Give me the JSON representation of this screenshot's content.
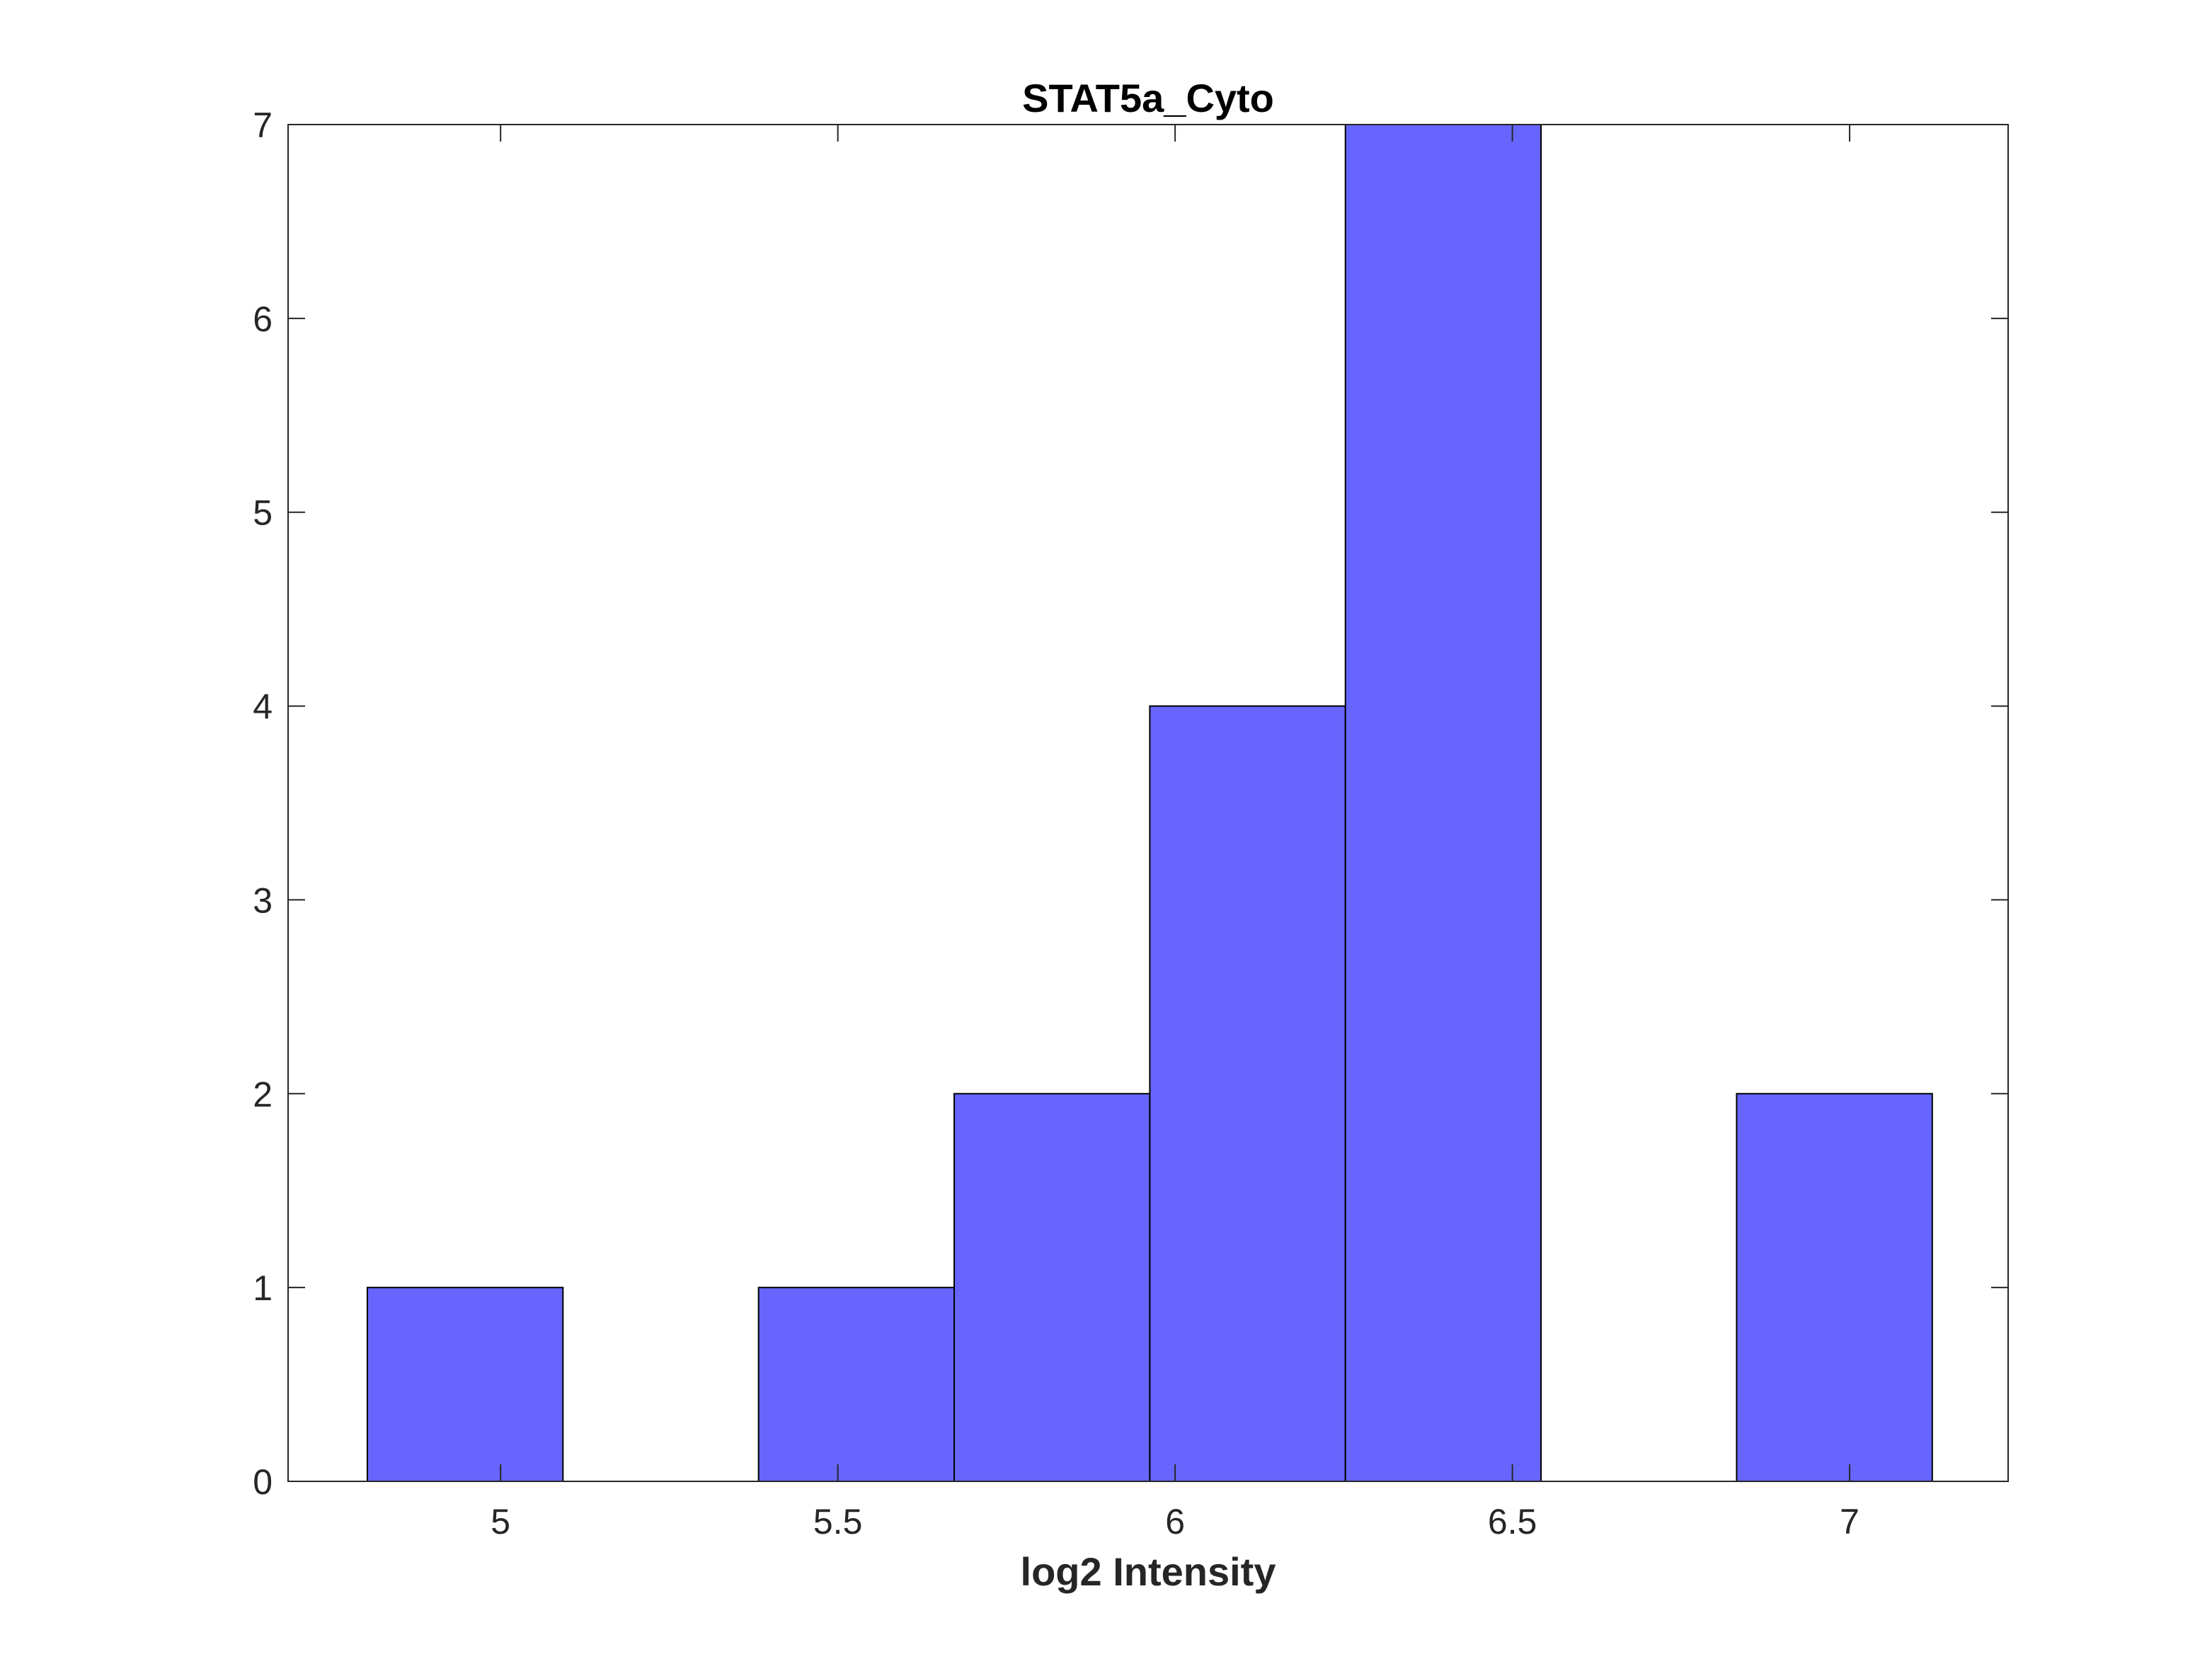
{
  "chart_data": {
    "type": "bar",
    "subtype": "histogram",
    "title": "STAT5a_Cyto",
    "xlabel": "log2 Intensity",
    "ylabel": "",
    "xlim": [
      4.685,
      7.235
    ],
    "ylim": [
      0,
      7
    ],
    "xticks": [
      5,
      5.5,
      6,
      6.5,
      7
    ],
    "xtick_labels": [
      "5",
      "5.5",
      "6",
      "6.5",
      "7"
    ],
    "yticks": [
      0,
      1,
      2,
      3,
      4,
      5,
      6,
      7
    ],
    "ytick_labels": [
      "0",
      "1",
      "2",
      "3",
      "4",
      "5",
      "6",
      "7"
    ],
    "bin_edges": [
      4.8025,
      5.0925,
      5.3825,
      5.6725,
      5.9625,
      6.2525,
      6.5425,
      6.8325,
      7.1225
    ],
    "values": [
      1,
      0,
      1,
      2,
      4,
      7,
      0,
      2
    ],
    "grid": false,
    "colors": {
      "bar_fill": "#6666ff",
      "bar_edge": "#000000",
      "axis": "#262626"
    }
  }
}
